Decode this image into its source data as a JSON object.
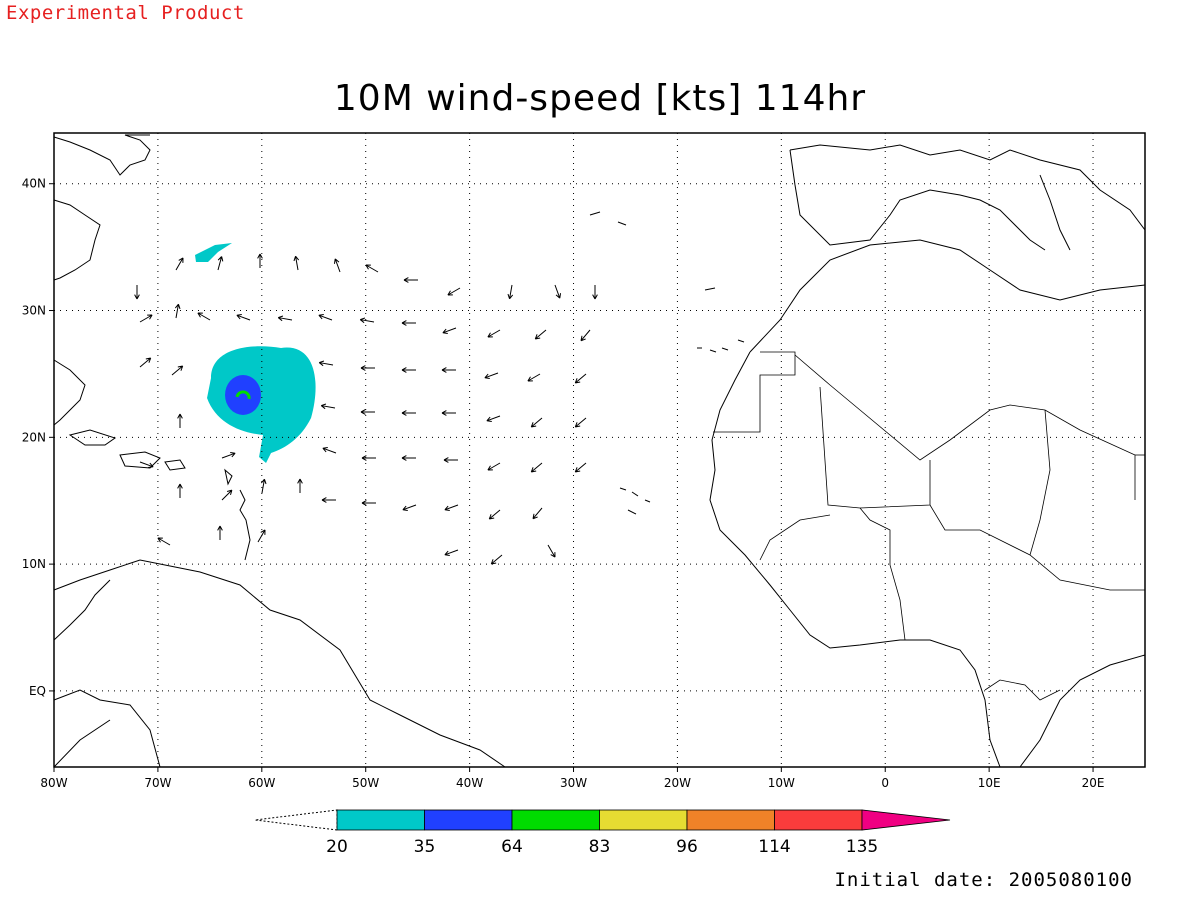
{
  "header": {
    "banner": "Experimental Product",
    "title": "10M wind-speed [kts] 114hr",
    "initial_date": "Initial date: 2005080100"
  },
  "map": {
    "extent": {
      "lon_min": -80,
      "lon_max": 25,
      "lat_min": -6,
      "lat_max": 44
    },
    "x_ticks": [
      {
        "lon": -80,
        "label": "80W"
      },
      {
        "lon": -70,
        "label": "70W"
      },
      {
        "lon": -60,
        "label": "60W"
      },
      {
        "lon": -50,
        "label": "50W"
      },
      {
        "lon": -40,
        "label": "40W"
      },
      {
        "lon": -30,
        "label": "30W"
      },
      {
        "lon": -20,
        "label": "20W"
      },
      {
        "lon": -10,
        "label": "10W"
      },
      {
        "lon": 0,
        "label": "0"
      },
      {
        "lon": 10,
        "label": "10E"
      },
      {
        "lon": 20,
        "label": "20E"
      }
    ],
    "y_ticks": [
      {
        "lat": 40,
        "label": "40N"
      },
      {
        "lat": 30,
        "label": "30N"
      },
      {
        "lat": 20,
        "label": "20N"
      },
      {
        "lat": 10,
        "label": "10N"
      },
      {
        "lat": 0,
        "label": "EQ"
      }
    ],
    "storm": {
      "center_lon": -62,
      "center_lat": 23.5
    }
  },
  "colorbar": {
    "levels": [
      "20",
      "35",
      "64",
      "83",
      "96",
      "114",
      "135"
    ],
    "colors": [
      "#00c8c8",
      "#2040ff",
      "#00dc00",
      "#e6dc32",
      "#f08228",
      "#fa3c3c",
      "#f00082"
    ]
  }
}
